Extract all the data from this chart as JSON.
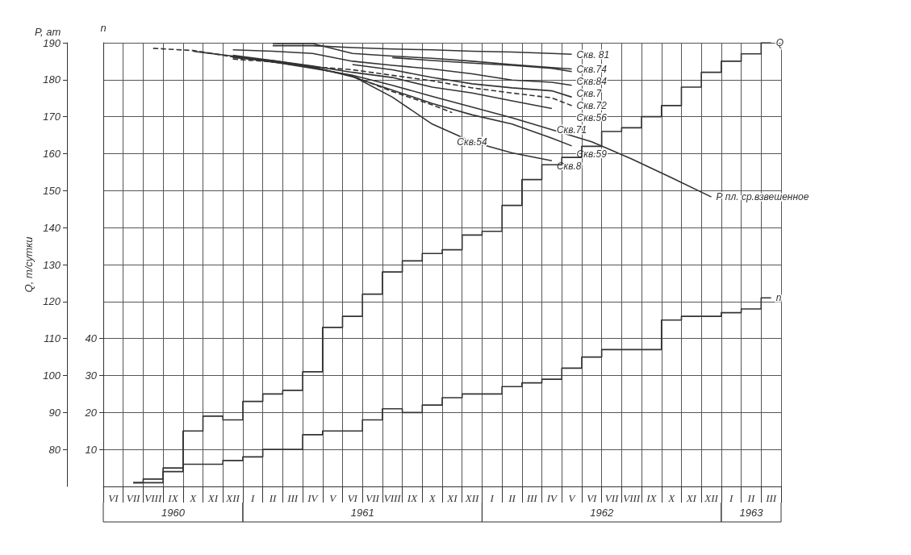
{
  "chart_data": {
    "type": "line",
    "ylabel": "Q, т/сутки",
    "y2label": "n",
    "annotations": [
      "P, ат",
      "1960",
      "1961",
      "1962",
      "1963"
    ],
    "categories": [
      "VI",
      "VII",
      "VIII",
      "IX",
      "X",
      "XI",
      "XII",
      "I",
      "II",
      "III",
      "IV",
      "V",
      "VI",
      "VII",
      "VIII",
      "IX",
      "X",
      "XI",
      "XII",
      "I",
      "II",
      "III",
      "IV",
      "V",
      "VI",
      "VII",
      "VIII",
      "IX",
      "X",
      "XI",
      "XII",
      "I",
      "II",
      "III"
    ],
    "ylim": [
      70,
      190
    ],
    "yticks": [
      80,
      90,
      100,
      110,
      120,
      130,
      140,
      150,
      160,
      170,
      180,
      190
    ],
    "y2lim": [
      0,
      120
    ],
    "y2ticks": [
      10,
      20,
      30,
      40
    ],
    "grid": true,
    "legend": false,
    "marker": "none",
    "series": [
      {
        "name": "Q",
        "type": "step",
        "color": "#333333",
        "values": [
          null,
          71,
          72,
          75,
          85,
          89,
          88,
          93,
          95,
          96,
          101,
          113,
          116,
          122,
          128,
          131,
          133,
          134,
          138,
          139,
          146,
          153,
          157,
          159,
          162,
          166,
          167,
          170,
          173,
          178,
          182,
          185,
          187,
          190
        ]
      },
      {
        "name": "n",
        "type": "step",
        "axis": "y2",
        "color": "#333333",
        "values": [
          null,
          1,
          1,
          4,
          6,
          6,
          7,
          8,
          10,
          10,
          14,
          15,
          15,
          18,
          21,
          20,
          22,
          24,
          25,
          25,
          27,
          28,
          29,
          32,
          35,
          37,
          37,
          37,
          45,
          46,
          46,
          47,
          48,
          51
        ]
      },
      {
        "name": "Скв. 81",
        "color": "#333333",
        "values": [
          null,
          null,
          null,
          null,
          null,
          null,
          null,
          null,
          189.2,
          null,
          189.2,
          null,
          188.7,
          null,
          188.3,
          null,
          188.1,
          null,
          187.7,
          null,
          187.5,
          null,
          187.1,
          186.9,
          null,
          null,
          null,
          null,
          null,
          null,
          null,
          null,
          null,
          null
        ]
      },
      {
        "name": "Скв.74",
        "color": "#333333",
        "values": [
          null,
          null,
          null,
          null,
          null,
          null,
          null,
          null,
          189.8,
          null,
          189.8,
          null,
          187.1,
          null,
          186.4,
          null,
          185.8,
          null,
          185,
          null,
          184.1,
          null,
          183.3,
          182.9,
          null,
          null,
          null,
          null,
          null,
          null,
          null,
          null,
          null,
          null
        ]
      },
      {
        "name": "Скв.84",
        "color": "#333333",
        "values": [
          null,
          null,
          null,
          null,
          null,
          null,
          null,
          null,
          null,
          null,
          null,
          null,
          null,
          null,
          186,
          null,
          185.2,
          null,
          184.5,
          null,
          183.9,
          null,
          183.1,
          182.2,
          null,
          null,
          null,
          null,
          null,
          null,
          null,
          null,
          null,
          null
        ]
      },
      {
        "name": "Скв.7",
        "color": "#333333",
        "values": [
          null,
          null,
          null,
          null,
          null,
          null,
          188.1,
          null,
          187.7,
          null,
          187.1,
          null,
          185,
          null,
          183.9,
          null,
          182.9,
          null,
          181.6,
          null,
          179.9,
          null,
          179.3,
          178.5,
          null,
          null,
          null,
          null,
          null,
          null,
          null,
          null,
          null,
          null
        ]
      },
      {
        "name": "Скв.72",
        "color": "#333333",
        "values": [
          null,
          null,
          null,
          null,
          null,
          null,
          null,
          null,
          null,
          null,
          null,
          null,
          184.1,
          null,
          182.7,
          null,
          180.6,
          null,
          178.9,
          null,
          177.8,
          null,
          177,
          175.3,
          null,
          null,
          null,
          null,
          null,
          null,
          null,
          null,
          null,
          null
        ]
      },
      {
        "name": "Скв.56",
        "line_style": "dashed",
        "color": "#333333",
        "values": [
          null,
          null,
          188.5,
          null,
          187.9,
          null,
          186.2,
          null,
          184.8,
          null,
          183.5,
          null,
          182.7,
          null,
          181.2,
          null,
          179.7,
          null,
          177.8,
          null,
          176.4,
          null,
          175.1,
          173,
          null,
          null,
          null,
          null,
          null,
          null,
          null,
          null,
          null,
          null
        ]
      },
      {
        "name": "Скв.71",
        "color": "#333333",
        "values": [
          null,
          null,
          null,
          null,
          null,
          null,
          186.6,
          null,
          185.2,
          null,
          183.7,
          null,
          182,
          null,
          180.6,
          null,
          178,
          null,
          176.4,
          null,
          174.3,
          null,
          172.2,
          null,
          null,
          null,
          null,
          null,
          null,
          null,
          null,
          null,
          null,
          null
        ]
      },
      {
        "name": "Скв.59",
        "color": "#333333",
        "values": [
          null,
          null,
          null,
          null,
          null,
          null,
          186,
          null,
          185.2,
          null,
          183.5,
          null,
          180.8,
          null,
          177.2,
          null,
          173.6,
          null,
          170.5,
          null,
          168,
          null,
          164.2,
          162.1,
          null,
          null,
          null,
          null,
          null,
          null,
          null,
          null,
          null,
          null
        ]
      },
      {
        "name": "Скв.54",
        "line_style": "dashed",
        "color": "#333333",
        "values": [
          null,
          null,
          null,
          null,
          null,
          null,
          185.6,
          null,
          184.8,
          null,
          183.3,
          null,
          181,
          null,
          176.8,
          null,
          173.2,
          171.1,
          null,
          null,
          null,
          null,
          null,
          null,
          null,
          null,
          null,
          null,
          null,
          null,
          null,
          null,
          null,
          null
        ]
      },
      {
        "name": "Скв.8",
        "color": "#333333",
        "values": [
          null,
          null,
          null,
          null,
          null,
          null,
          186.2,
          null,
          185,
          null,
          183.3,
          null,
          181,
          null,
          175.3,
          null,
          168,
          null,
          163.2,
          null,
          160.2,
          null,
          158.1,
          null,
          null,
          null,
          null,
          null,
          null,
          null,
          null,
          null,
          null,
          null
        ]
      },
      {
        "name": "Р пл. ср.взвешенное",
        "color": "#333333",
        "values": [
          null,
          null,
          null,
          null,
          187.7,
          null,
          186.4,
          null,
          184.8,
          null,
          183.1,
          null,
          181.2,
          null,
          178.5,
          null,
          175.5,
          null,
          172.6,
          null,
          169.7,
          null,
          166.5,
          null,
          163.2,
          null,
          158.6,
          null,
          153.5,
          null,
          148.3,
          null,
          null,
          null
        ]
      }
    ]
  }
}
